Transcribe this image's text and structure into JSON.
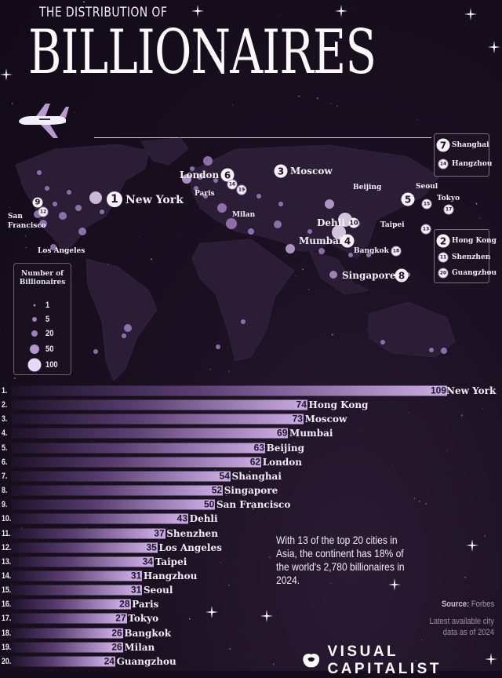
{
  "header": {
    "subtitle": "THE DISTRIBUTION OF",
    "title": "BILLIONAIRES"
  },
  "map": {
    "labels": {
      "new_york": {
        "city": "New York",
        "rank": "1"
      },
      "hong_kong": {
        "city": "Hong Kong",
        "rank": "2"
      },
      "moscow": {
        "city": "Moscow",
        "rank": "3"
      },
      "mumbai": {
        "city": "Mumbai",
        "rank": "4"
      },
      "beijing": {
        "city": "Beijing",
        "rank": "5"
      },
      "london": {
        "city": "London",
        "rank": "6"
      },
      "shanghai": {
        "city": "Shanghai",
        "rank": "7"
      },
      "singapore": {
        "city": "Singapore",
        "rank": "8"
      },
      "san_francisco": {
        "city": "San Francisco",
        "rank": "9"
      },
      "dehli": {
        "city": "Dehli",
        "rank": "10"
      },
      "shenzhen": {
        "city": "Shenzhen",
        "rank": "11"
      },
      "los_angeles": {
        "city": "Los Angeles",
        "rank": "12"
      },
      "taipei": {
        "city": "Taipei",
        "rank": "13"
      },
      "hangzhou": {
        "city": "Hangzhou",
        "rank": "14"
      },
      "seoul": {
        "city": "Seoul",
        "rank": "15"
      },
      "paris": {
        "city": "Paris",
        "rank": "16"
      },
      "tokyo": {
        "city": "Tokyo",
        "rank": "17"
      },
      "bangkok": {
        "city": "Bangkok",
        "rank": "18"
      },
      "milan": {
        "city": "Milan",
        "rank": "19"
      },
      "guangzhou": {
        "city": "Guangzhou",
        "rank": "20"
      }
    },
    "legend": {
      "title": "Number of Billionaires",
      "sizes": [
        "1",
        "5",
        "20",
        "50",
        "100"
      ]
    },
    "colors": {
      "bubble": "#9f7fbd",
      "land": "#2b1d36",
      "background": "#140c1b"
    }
  },
  "chart_data": {
    "type": "bar",
    "orientation": "horizontal",
    "title": "",
    "xlabel": "",
    "ylabel": "",
    "xlim": [
      0,
      109
    ],
    "grid": false,
    "ranks": [
      "1.",
      "2.",
      "3.",
      "4.",
      "5.",
      "6.",
      "7.",
      "8.",
      "9.",
      "10.",
      "11.",
      "12.",
      "13.",
      "14.",
      "15.",
      "16.",
      "17.",
      "18.",
      "19.",
      "20."
    ],
    "categories": [
      "New York",
      "Hong Kong",
      "Moscow",
      "Mumbai",
      "Beijing",
      "London",
      "Shanghai",
      "Singapore",
      "San Francisco",
      "Dehli",
      "Shenzhen",
      "Los Angeles",
      "Taipei",
      "Hangzhou",
      "Seoul",
      "Paris",
      "Tokyo",
      "Bangkok",
      "Milan",
      "Guangzhou"
    ],
    "values": [
      109,
      74,
      73,
      69,
      63,
      62,
      54,
      52,
      50,
      43,
      37,
      35,
      34,
      31,
      31,
      28,
      27,
      26,
      26,
      24
    ],
    "bar_color": "#c5a9de"
  },
  "footer": {
    "note": "With 13 of the top 20 cities in Asia, the continent has 18% of the world's 2,780 billionaires in 2024.",
    "source_label": "Source:",
    "source_value": "Forbes",
    "latest": "Latest available city data as of 2024",
    "brand": "VISUAL CAPITALIST"
  }
}
